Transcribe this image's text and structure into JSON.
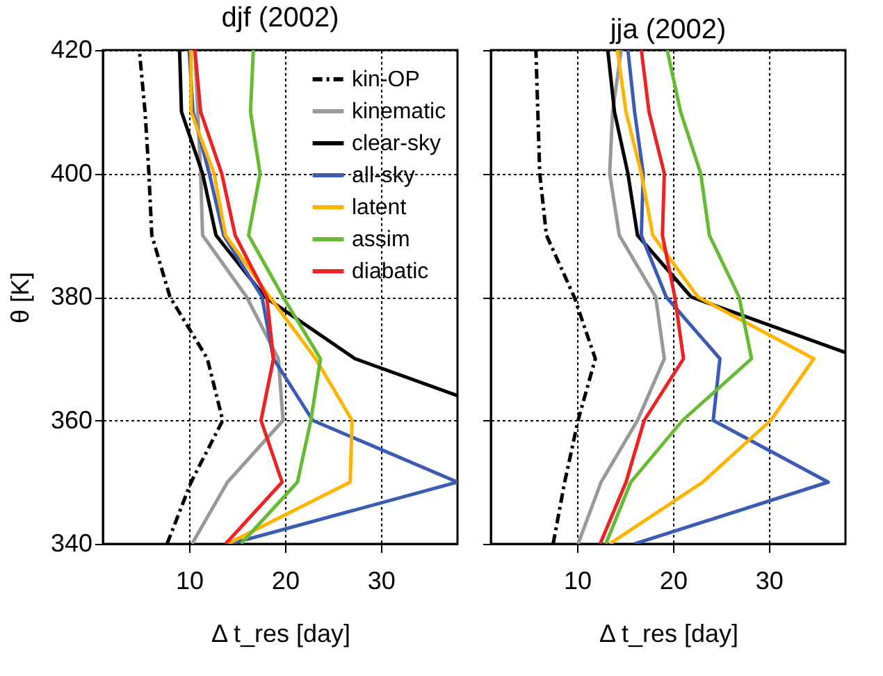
{
  "chart_data": [
    {
      "type": "line",
      "orientation": "horizontal",
      "title": "djf (2002)",
      "xlabel": "Δ t_res [day]",
      "ylabel": "θ [K]",
      "x": [
        340,
        350,
        360,
        370,
        380,
        390,
        400,
        410,
        420
      ],
      "xlim": [
        1,
        38
      ],
      "xticks": [
        10,
        20,
        30
      ],
      "ylim": [
        340,
        420
      ],
      "yticks": [
        340,
        360,
        380,
        400,
        420
      ],
      "grid": true,
      "legend": "top right",
      "series": [
        {
          "name": "kin-OP",
          "color": "#000000",
          "line_style": "dashed",
          "values": [
            7.7,
            10.2,
            13.5,
            11.9,
            8.0,
            6.1,
            5.8,
            5.4,
            4.8
          ]
        },
        {
          "name": "kinematic",
          "color": "#999999",
          "values": [
            10.3,
            14.0,
            19.8,
            19.3,
            16.0,
            11.4,
            11.2,
            10.9,
            10.6
          ]
        },
        {
          "name": "clear-sky",
          "color": "#000000",
          "x": [
            364,
            370,
            380,
            390,
            400,
            410,
            420
          ],
          "values": [
            38,
            27.3,
            17.9,
            12.8,
            11.4,
            9.2,
            9.0
          ]
        },
        {
          "name": "all-sky",
          "color": "#3b5cb5",
          "values": [
            14.3,
            38,
            22.9,
            18.8,
            17.6,
            13.6,
            12.1,
            10.4,
            10.0
          ]
        },
        {
          "name": "latent",
          "color": "#ffb400",
          "values": [
            14.0,
            26.8,
            27.0,
            23.2,
            18.4,
            13.8,
            12.6,
            10.2,
            10.2
          ]
        },
        {
          "name": "assim",
          "color": "#66bb33",
          "values": [
            15.4,
            21.3,
            22.7,
            23.7,
            19.8,
            16.2,
            17.4,
            16.4,
            16.7
          ]
        },
        {
          "name": "diabatic",
          "color": "#ee2222",
          "values": [
            13.8,
            19.7,
            17.5,
            18.8,
            18.1,
            14.8,
            13.4,
            11.2,
            10.6
          ]
        }
      ]
    },
    {
      "type": "line",
      "orientation": "horizontal",
      "title": "jja (2002)",
      "xlabel": "Δ t_res [day]",
      "x": [
        340,
        350,
        360,
        370,
        380,
        390,
        400,
        410,
        420
      ],
      "xlim": [
        1,
        38
      ],
      "xticks": [
        10,
        20,
        30
      ],
      "ylim": [
        340,
        420
      ],
      "yticks": [
        340,
        360,
        380,
        400,
        420
      ],
      "grid": true,
      "tick_labels": "x",
      "series": [
        {
          "color": "#000000",
          "line_style": "dashed",
          "values": [
            7.5,
            8.7,
            10.1,
            11.9,
            9.7,
            6.8,
            6.1,
            5.9,
            5.7
          ]
        },
        {
          "color": "#999999",
          "values": [
            10.1,
            12.5,
            16.3,
            19.1,
            18.2,
            14.4,
            13.4,
            13.7,
            14.6
          ]
        },
        {
          "color": "#000000",
          "x": [
            371,
            380,
            390,
            400,
            410,
            420
          ],
          "values": [
            38,
            21.9,
            16.3,
            15.3,
            13.9,
            13.2
          ]
        },
        {
          "color": "#3b5cb5",
          "values": [
            16.0,
            36.2,
            24.2,
            24.9,
            19.3,
            16.7,
            16.9,
            16.0,
            15.3
          ]
        },
        {
          "color": "#ffb400",
          "values": [
            13.4,
            23.1,
            30.2,
            34.7,
            22.6,
            17.9,
            16.7,
            15.1,
            14.2
          ]
        },
        {
          "color": "#66bb33",
          "values": [
            13.0,
            15.6,
            21.0,
            28.2,
            26.9,
            23.8,
            22.9,
            20.8,
            19.4
          ]
        },
        {
          "color": "#ee2222",
          "values": [
            12.4,
            15.1,
            17.0,
            21.1,
            20.2,
            18.9,
            19.1,
            17.5,
            16.7
          ]
        }
      ]
    }
  ]
}
